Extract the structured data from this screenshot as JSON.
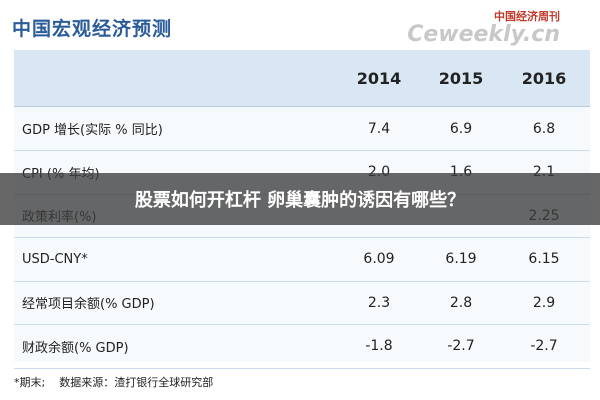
{
  "header": {
    "title": "中国宏观经济预测",
    "watermark_cn": "中国经济周刊",
    "watermark_en": "Ceweekly.cn"
  },
  "table": {
    "columns": [
      "2014",
      "2015",
      "2016"
    ],
    "rows": [
      [
        "GDP 增长(实际 % 同比)",
        "7.4",
        "6.9",
        "6.8"
      ],
      [
        "CPI (% 年均)",
        "2.0",
        "1.6",
        "2.1"
      ],
      [
        "政策利率(%)",
        null,
        null,
        "2.25"
      ],
      [
        "USD-CNY*",
        "6.09",
        "6.19",
        "6.15"
      ],
      [
        "经常项目余额(% GDP)",
        "2.3",
        "2.8",
        "2.9"
      ],
      [
        "财政余额(% GDP)",
        "-1.8",
        "-2.7",
        "-2.7"
      ]
    ]
  },
  "footnote": "*期末;    数据来源：渣打银行全球研究部",
  "banner": "股票如何开杠杆 卵巢囊肿的诱因有哪些？"
}
